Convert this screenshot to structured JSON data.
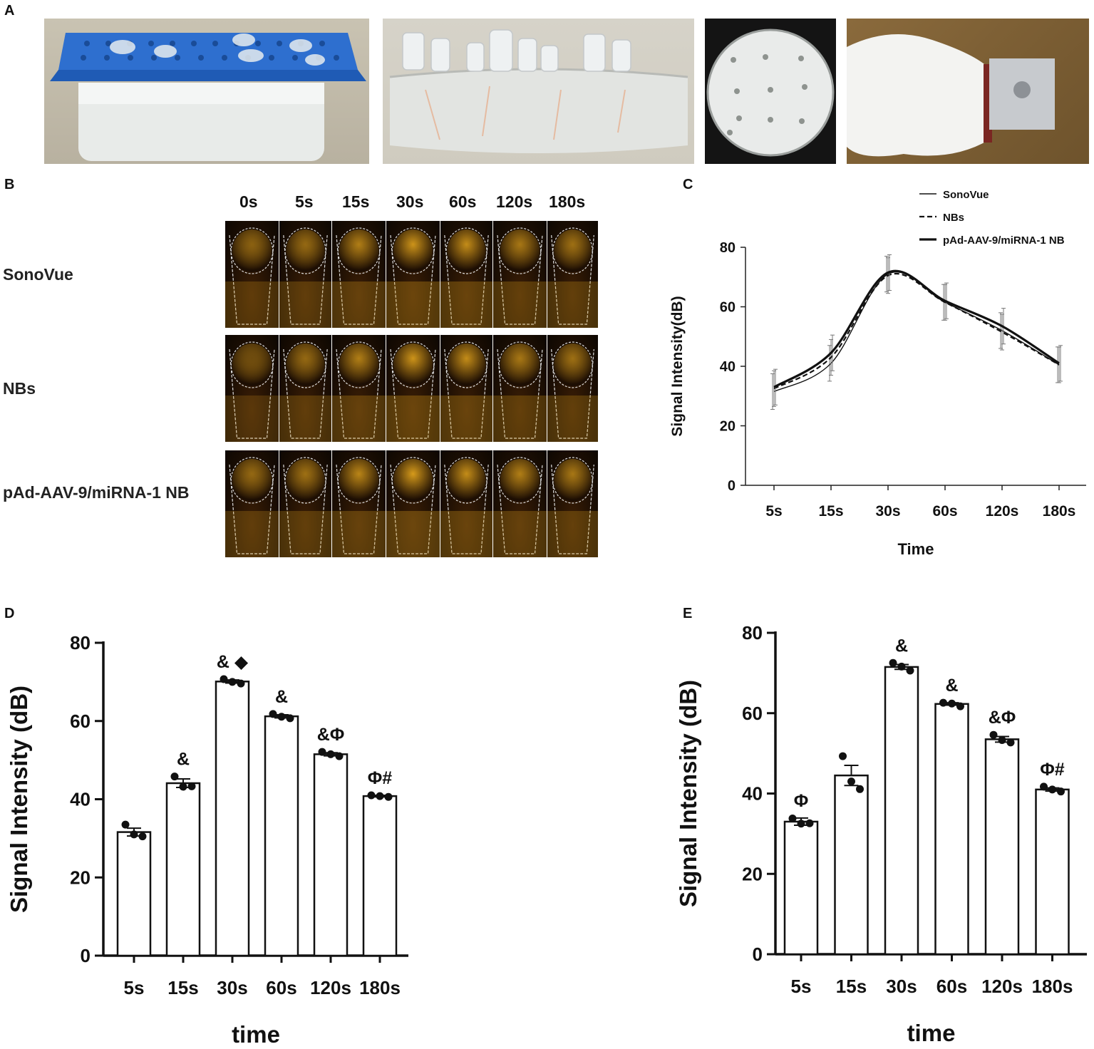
{
  "panels": {
    "a": "A",
    "b": "B",
    "c": "C",
    "d": "D",
    "e": "E"
  },
  "panel_b": {
    "times": [
      "0s",
      "5s",
      "15s",
      "30s",
      "60s",
      "120s",
      "180s"
    ],
    "rows": [
      "SonoVue",
      "NBs",
      "pAd-AAV-9/miRNA-1 NB"
    ],
    "colors": {
      "echo": "#e0a21c",
      "background": "#1b0d03",
      "outline": "#dcdcdc"
    }
  },
  "panel_a": {
    "colors": {
      "rack": "#1f5bb5",
      "gel": "#e5e8e6",
      "wall": "#d9d6cc",
      "bag": "#f2f2f0",
      "block": "#c9ccd0"
    }
  },
  "chart_data": [
    {
      "id": "C",
      "type": "line",
      "title": "",
      "xlabel": "Time",
      "ylabel": "Signal Intensity(dB)",
      "categories": [
        "5s",
        "15s",
        "30s",
        "60s",
        "120s",
        "180s"
      ],
      "ylim": [
        0,
        80
      ],
      "yticks": [
        0,
        20,
        40,
        60,
        80
      ],
      "legend_position": "top-right",
      "series": [
        {
          "name": "SonoVue",
          "style": "thin",
          "values": [
            31.5,
            41,
            71,
            61.5,
            52,
            40.5
          ],
          "errors": [
            6,
            6,
            6,
            6,
            6,
            6
          ]
        },
        {
          "name": "NBs",
          "style": "dashed",
          "values": [
            32.5,
            43,
            70.5,
            61.5,
            51.5,
            40.5
          ],
          "errors": [
            6,
            6,
            6,
            6,
            6,
            6
          ]
        },
        {
          "name": "pAd-AAV-9/miRNA-1 NB",
          "style": "thick",
          "values": [
            33,
            44.5,
            71.5,
            62,
            53.5,
            41
          ],
          "errors": [
            6,
            6,
            6,
            6,
            6,
            6
          ]
        }
      ]
    },
    {
      "id": "D",
      "type": "bar",
      "title": "",
      "xlabel": "time",
      "ylabel": "Signal Intensity (dB)",
      "categories": [
        "5s",
        "15s",
        "30s",
        "60s",
        "120s",
        "180s"
      ],
      "values": [
        31.6,
        44.1,
        70.1,
        61.2,
        51.5,
        40.8
      ],
      "errors": [
        1.0,
        1.1,
        0.4,
        0.4,
        0.4,
        0.2
      ],
      "points": [
        [
          33.5,
          31,
          30.5
        ],
        [
          45.8,
          43.2,
          43.3
        ],
        [
          70.7,
          70.0,
          69.6
        ],
        [
          61.8,
          61.1,
          60.7
        ],
        [
          52.1,
          51.5,
          51.0
        ],
        [
          41.0,
          40.8,
          40.6
        ]
      ],
      "annotations": [
        "",
        "&",
        "& ◆",
        "&",
        "&Φ",
        "Φ#"
      ],
      "ylim": [
        0,
        80
      ],
      "yticks": [
        0,
        20,
        40,
        60,
        80
      ]
    },
    {
      "id": "E",
      "type": "bar",
      "title": "",
      "xlabel": "time",
      "ylabel": "Signal Intensity (dB)",
      "categories": [
        "5s",
        "15s",
        "30s",
        "60s",
        "120s",
        "180s"
      ],
      "values": [
        33.0,
        44.5,
        71.5,
        62.3,
        53.5,
        41.0
      ],
      "errors": [
        0.9,
        2.5,
        0.6,
        0.3,
        0.7,
        0.4
      ],
      "points": [
        [
          33.8,
          32.5,
          32.6
        ],
        [
          49.3,
          43.0,
          41.1
        ],
        [
          72.5,
          71.6,
          70.6
        ],
        [
          62.6,
          62.4,
          61.7
        ],
        [
          54.6,
          53.3,
          52.7
        ],
        [
          41.7,
          41.0,
          40.5
        ]
      ],
      "annotations": [
        "Φ",
        "",
        "&",
        "&",
        "&Φ",
        "Φ#"
      ],
      "ylim": [
        0,
        80
      ],
      "yticks": [
        0,
        20,
        40,
        60,
        80
      ]
    }
  ]
}
